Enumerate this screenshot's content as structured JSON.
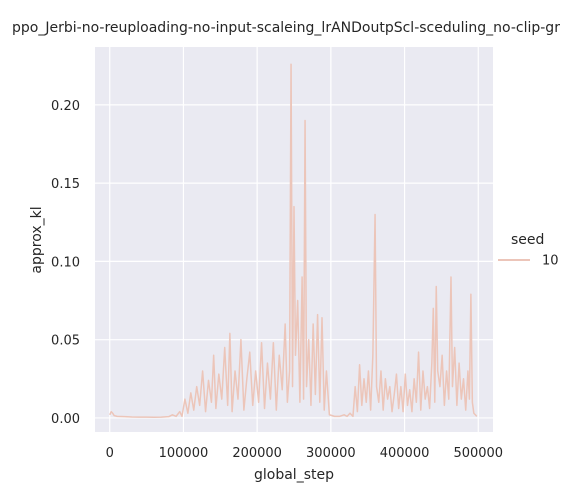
{
  "chart_data": {
    "type": "line",
    "title": "ppo_Jerbi-no-reuploading-no-input-scaleing_lrANDoutpScl-sceduling_no-clip-gr",
    "xlabel": "global_step",
    "ylabel": "approx_kl",
    "xlim": [
      -20000,
      520000
    ],
    "ylim": [
      -0.009,
      0.237
    ],
    "x_ticks": [
      0,
      100000,
      200000,
      300000,
      400000,
      500000
    ],
    "x_tick_labels": [
      "0",
      "100000",
      "200000",
      "300000",
      "400000",
      "500000"
    ],
    "y_ticks": [
      0.0,
      0.05,
      0.1,
      0.15,
      0.2
    ],
    "y_tick_labels": [
      "0.00",
      "0.05",
      "0.10",
      "0.15",
      "0.20"
    ],
    "grid": true,
    "background": "#eaeaf2",
    "legend": {
      "title": "seed",
      "placement": "right",
      "entries": [
        "10"
      ]
    },
    "series": [
      {
        "name": "10",
        "color": "#ecc5b9",
        "points": [
          [
            0,
            0.002
          ],
          [
            2000,
            0.004
          ],
          [
            4000,
            0.003
          ],
          [
            6000,
            0.0015
          ],
          [
            10000,
            0.001
          ],
          [
            20000,
            0.0008
          ],
          [
            30000,
            0.0006
          ],
          [
            40000,
            0.0005
          ],
          [
            50000,
            0.0005
          ],
          [
            60000,
            0.0004
          ],
          [
            70000,
            0.0005
          ],
          [
            80000,
            0.0008
          ],
          [
            85000,
            0.002
          ],
          [
            90000,
            0.001
          ],
          [
            95000,
            0.004
          ],
          [
            98000,
            0.001
          ],
          [
            102000,
            0.012
          ],
          [
            106000,
            0.003
          ],
          [
            110000,
            0.016
          ],
          [
            114000,
            0.005
          ],
          [
            118000,
            0.02
          ],
          [
            122000,
            0.008
          ],
          [
            126000,
            0.03
          ],
          [
            130000,
            0.004
          ],
          [
            134000,
            0.024
          ],
          [
            138000,
            0.01
          ],
          [
            141000,
            0.04
          ],
          [
            144000,
            0.006
          ],
          [
            148000,
            0.028
          ],
          [
            152000,
            0.012
          ],
          [
            156000,
            0.045
          ],
          [
            160000,
            0.008
          ],
          [
            163000,
            0.054
          ],
          [
            166000,
            0.004
          ],
          [
            170000,
            0.03
          ],
          [
            174000,
            0.012
          ],
          [
            178000,
            0.05
          ],
          [
            182000,
            0.005
          ],
          [
            186000,
            0.025
          ],
          [
            190000,
            0.042
          ],
          [
            194000,
            0.008
          ],
          [
            198000,
            0.03
          ],
          [
            202000,
            0.01
          ],
          [
            206000,
            0.048
          ],
          [
            210000,
            0.006
          ],
          [
            214000,
            0.035
          ],
          [
            218000,
            0.012
          ],
          [
            222000,
            0.048
          ],
          [
            226000,
            0.005
          ],
          [
            230000,
            0.04
          ],
          [
            234000,
            0.018
          ],
          [
            238000,
            0.06
          ],
          [
            241000,
            0.01
          ],
          [
            244000,
            0.03
          ],
          [
            246000,
            0.226
          ],
          [
            248000,
            0.02
          ],
          [
            250000,
            0.135
          ],
          [
            252000,
            0.04
          ],
          [
            255000,
            0.075
          ],
          [
            258000,
            0.01
          ],
          [
            261000,
            0.09
          ],
          [
            263000,
            0.012
          ],
          [
            265000,
            0.19
          ],
          [
            267000,
            0.02
          ],
          [
            270000,
            0.05
          ],
          [
            273000,
            0.008
          ],
          [
            276000,
            0.06
          ],
          [
            279000,
            0.015
          ],
          [
            282000,
            0.066
          ],
          [
            285000,
            0.01
          ],
          [
            288000,
            0.064
          ],
          [
            291000,
            0.005
          ],
          [
            294000,
            0.03
          ],
          [
            298000,
            0.002
          ],
          [
            305000,
            0.001
          ],
          [
            312000,
            0.001
          ],
          [
            318000,
            0.002
          ],
          [
            322000,
            0.001
          ],
          [
            326000,
            0.003
          ],
          [
            330000,
            0.001
          ],
          [
            333000,
            0.02
          ],
          [
            336000,
            0.004
          ],
          [
            339000,
            0.034
          ],
          [
            342000,
            0.008
          ],
          [
            345000,
            0.025
          ],
          [
            348000,
            0.01
          ],
          [
            351000,
            0.03
          ],
          [
            354000,
            0.005
          ],
          [
            357000,
            0.04
          ],
          [
            360000,
            0.13
          ],
          [
            362000,
            0.02
          ],
          [
            365000,
            0.01
          ],
          [
            368000,
            0.03
          ],
          [
            371000,
            0.005
          ],
          [
            374000,
            0.025
          ],
          [
            377000,
            0.012
          ],
          [
            380000,
            0.02
          ],
          [
            383000,
            0.004
          ],
          [
            386000,
            0.015
          ],
          [
            389000,
            0.028
          ],
          [
            392000,
            0.006
          ],
          [
            395000,
            0.02
          ],
          [
            398000,
            0.004
          ],
          [
            401000,
            0.028
          ],
          [
            404000,
            0.008
          ],
          [
            407000,
            0.018
          ],
          [
            410000,
            0.004
          ],
          [
            413000,
            0.025
          ],
          [
            416000,
            0.01
          ],
          [
            419000,
            0.042
          ],
          [
            422000,
            0.005
          ],
          [
            425000,
            0.03
          ],
          [
            428000,
            0.012
          ],
          [
            431000,
            0.02
          ],
          [
            434000,
            0.006
          ],
          [
            437000,
            0.035
          ],
          [
            439000,
            0.07
          ],
          [
            441000,
            0.01
          ],
          [
            443000,
            0.084
          ],
          [
            445000,
            0.03
          ],
          [
            448000,
            0.02
          ],
          [
            451000,
            0.04
          ],
          [
            454000,
            0.008
          ],
          [
            457000,
            0.03
          ],
          [
            460000,
            0.012
          ],
          [
            463000,
            0.09
          ],
          [
            465000,
            0.02
          ],
          [
            468000,
            0.045
          ],
          [
            471000,
            0.008
          ],
          [
            474000,
            0.035
          ],
          [
            477000,
            0.012
          ],
          [
            480000,
            0.025
          ],
          [
            483000,
            0.005
          ],
          [
            486000,
            0.03
          ],
          [
            488000,
            0.012
          ],
          [
            490000,
            0.079
          ],
          [
            492000,
            0.01
          ],
          [
            494000,
            0.003
          ],
          [
            496000,
            0.002
          ],
          [
            498000,
            0.001
          ]
        ]
      }
    ]
  }
}
